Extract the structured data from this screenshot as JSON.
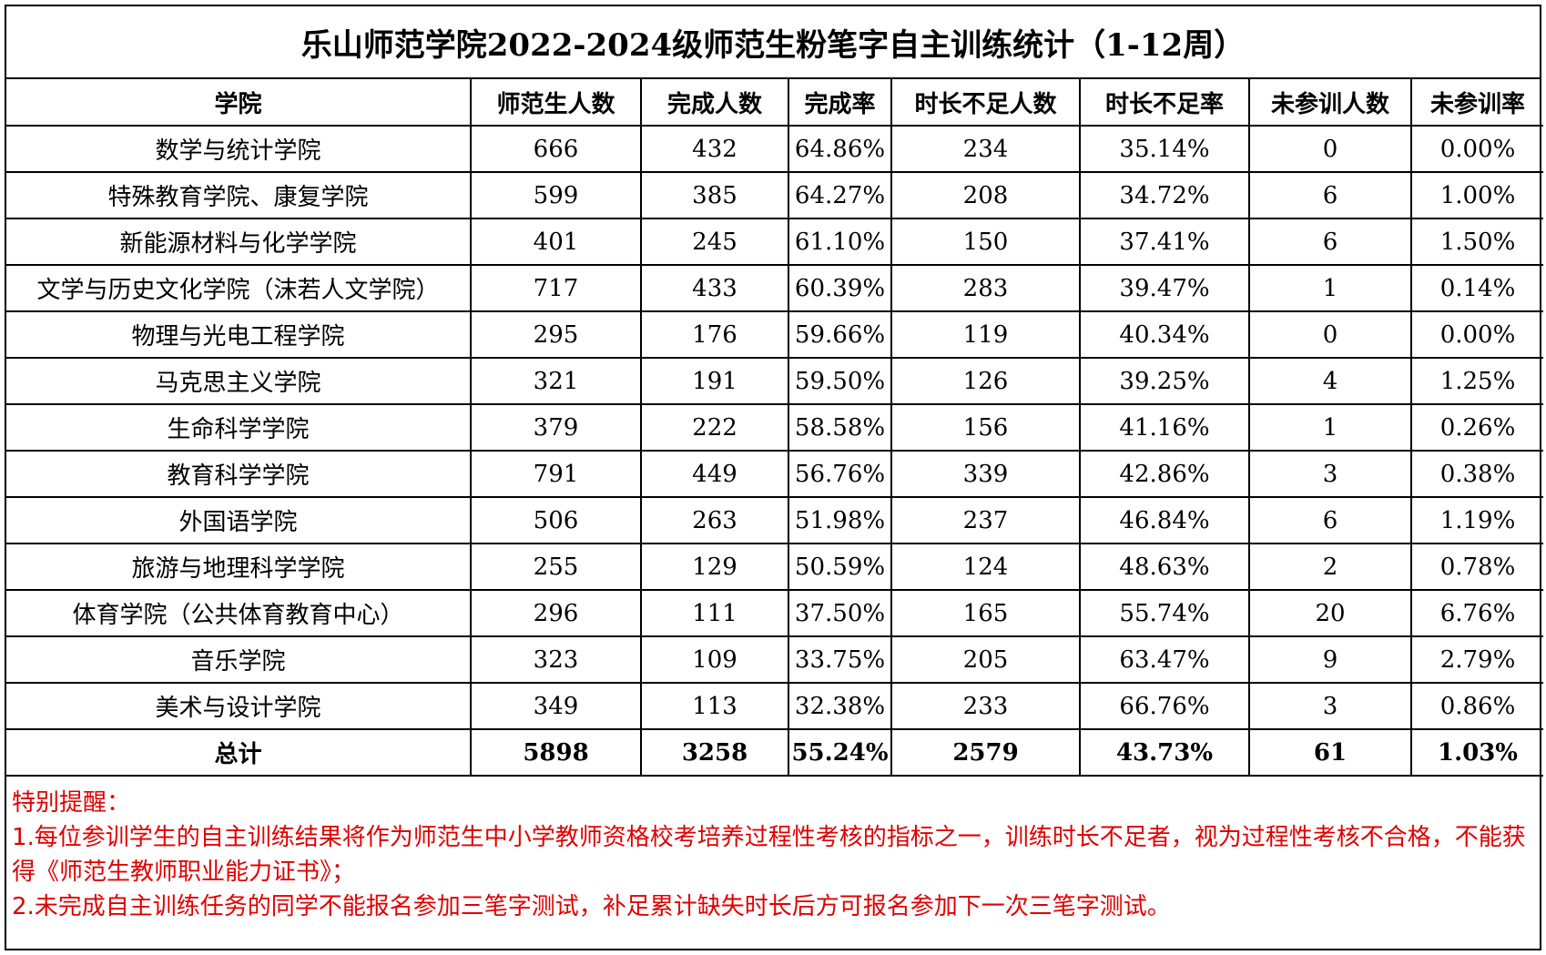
{
  "title": "乐山师范学院2022-2024级师范生粉笔字自主训练统计（1-12周）",
  "columns": [
    "学院",
    "师范生人数",
    "完成人数",
    "完成率",
    "时长不足人数",
    "时长不足率",
    "未参训人数",
    "未参训率"
  ],
  "rows": [
    [
      "数学与统计学院",
      "666",
      "432",
      "64.86%",
      "234",
      "35.14%",
      "0",
      "0.00%"
    ],
    [
      "特殊教育学院、康复学院",
      "599",
      "385",
      "64.27%",
      "208",
      "34.72%",
      "6",
      "1.00%"
    ],
    [
      "新能源材料与化学学院",
      "401",
      "245",
      "61.10%",
      "150",
      "37.41%",
      "6",
      "1.50%"
    ],
    [
      "文学与历史文化学院（沫若人文学院）",
      "717",
      "433",
      "60.39%",
      "283",
      "39.47%",
      "1",
      "0.14%"
    ],
    [
      "物理与光电工程学院",
      "295",
      "176",
      "59.66%",
      "119",
      "40.34%",
      "0",
      "0.00%"
    ],
    [
      "马克思主义学院",
      "321",
      "191",
      "59.50%",
      "126",
      "39.25%",
      "4",
      "1.25%"
    ],
    [
      "生命科学学院",
      "379",
      "222",
      "58.58%",
      "156",
      "41.16%",
      "1",
      "0.26%"
    ],
    [
      "教育科学学院",
      "791",
      "449",
      "56.76%",
      "339",
      "42.86%",
      "3",
      "0.38%"
    ],
    [
      "外国语学院",
      "506",
      "263",
      "51.98%",
      "237",
      "46.84%",
      "6",
      "1.19%"
    ],
    [
      "旅游与地理科学学院",
      "255",
      "129",
      "50.59%",
      "124",
      "48.63%",
      "2",
      "0.78%"
    ],
    [
      "体育学院（公共体育教育中心）",
      "296",
      "111",
      "37.50%",
      "165",
      "55.74%",
      "20",
      "6.76%"
    ],
    [
      "音乐学院",
      "323",
      "109",
      "33.75%",
      "205",
      "63.47%",
      "9",
      "2.79%"
    ],
    [
      "美术与设计学院",
      "349",
      "113",
      "32.38%",
      "233",
      "66.76%",
      "3",
      "0.86%"
    ]
  ],
  "total": [
    "总计",
    "5898",
    "3258",
    "55.24%",
    "2579",
    "43.73%",
    "61",
    "1.03%"
  ],
  "notes": {
    "heading": "特别提醒：",
    "items": [
      "1.每位参训学生的自主训练结果将作为师范生中小学教师资格校考培养过程性考核的指标之一，训练时长不足者，视为过程性考核不合格，不能获得《师范生教师职业能力证书》；",
      "2.未完成自主训练任务的同学不能报名参加三笔字测试，补足累计缺失时长后方可报名参加下一次三笔字测试。"
    ],
    "color": "#e00000"
  }
}
